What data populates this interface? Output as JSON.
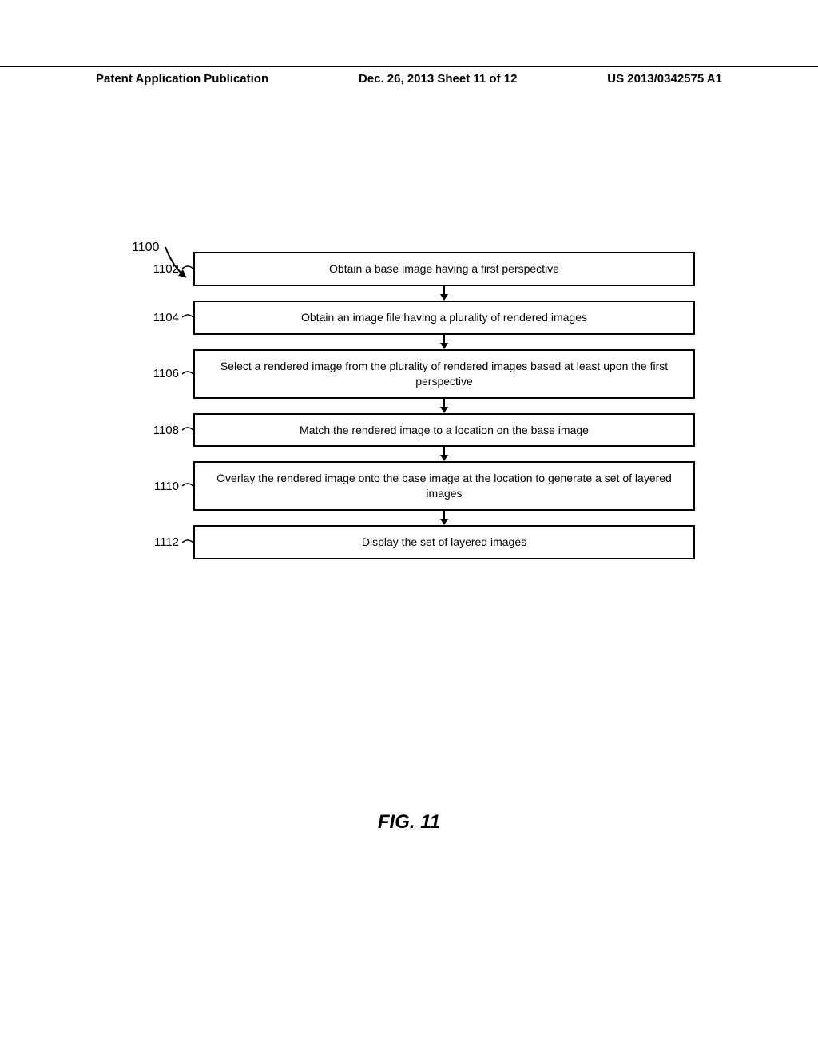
{
  "header": {
    "left": "Patent Application Publication",
    "center": "Dec. 26, 2013  Sheet 11 of 12",
    "right": "US 2013/0342575 A1"
  },
  "flowchart": {
    "ref": "1100",
    "steps": [
      {
        "num": "1102",
        "text": "Obtain a base image having a first perspective"
      },
      {
        "num": "1104",
        "text": "Obtain an image file having a plurality of rendered images"
      },
      {
        "num": "1106",
        "text": "Select a rendered image from the plurality of rendered images based at least upon the first perspective"
      },
      {
        "num": "1108",
        "text": "Match the rendered image to a location on the base image"
      },
      {
        "num": "1110",
        "text": "Overlay the rendered image onto the base image at the location to generate a set of layered images"
      },
      {
        "num": "1112",
        "text": "Display the set of layered images"
      }
    ]
  },
  "caption": "FIG. 11",
  "style": {
    "border_color": "#000000",
    "background": "#ffffff",
    "text_color": "#000000",
    "box_border_width": 2,
    "arrow_gap": 18,
    "label_fontsize": 15,
    "box_fontsize": 14,
    "caption_fontsize": 24
  }
}
